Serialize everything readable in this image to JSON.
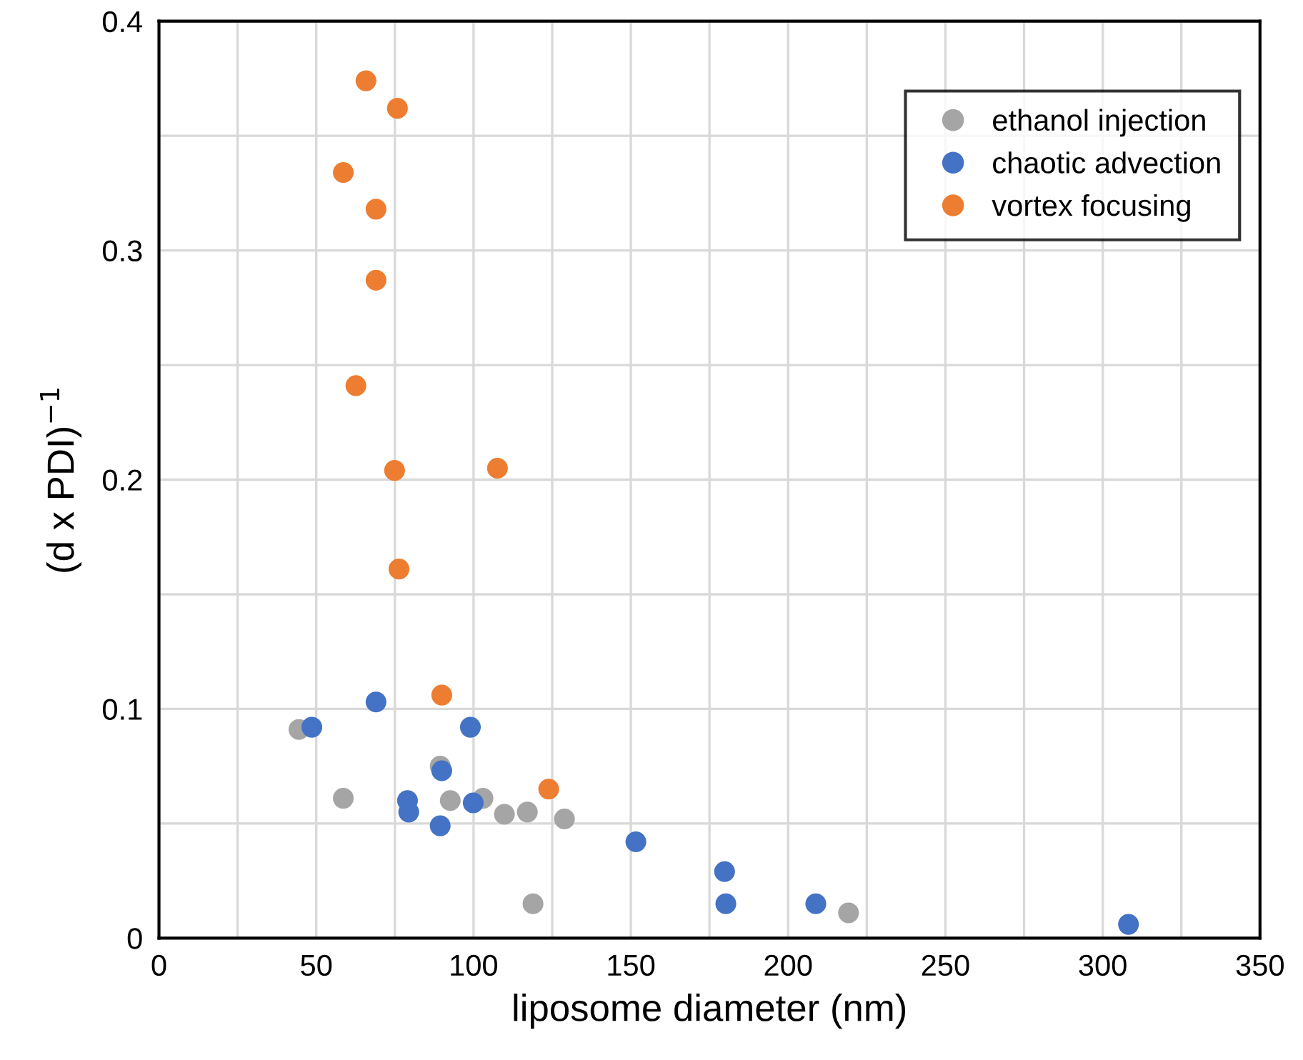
{
  "chart_data": {
    "type": "scatter",
    "xlabel": "liposome diameter (nm)",
    "ylabel": "(d x PDI)$^{−1}$",
    "xlim": [
      0,
      350
    ],
    "ylim": [
      0,
      0.4
    ],
    "xticks": [
      0,
      {
        "value": 25,
        "label": null
      },
      50,
      {
        "value": 75,
        "label": null
      },
      100,
      {
        "value": 125,
        "label": null
      },
      150,
      {
        "value": 175,
        "label": null
      },
      200,
      {
        "value": 225,
        "label": null
      },
      250,
      {
        "value": 275,
        "label": null
      },
      300,
      {
        "value": 325,
        "label": null
      },
      350
    ],
    "yticks": [
      0,
      {
        "value": 0.05,
        "label": null
      },
      0.1,
      {
        "value": 0.15,
        "label": null
      },
      0.2,
      {
        "value": 0.25,
        "label": null
      },
      0.3,
      {
        "value": 0.35,
        "label": null
      },
      0.4
    ],
    "grid": true,
    "legend": "top right",
    "marker": "circle",
    "series": [
      {
        "name": "ethanol injection",
        "color": "#a5a5a5",
        "x": [
          44.5,
          58.6,
          89.4,
          92.6,
          103,
          109.8,
          117.1,
          128.9,
          118.9,
          219.2
        ],
        "values": [
          0.091,
          0.061,
          0.075,
          0.06,
          0.061,
          0.054,
          0.055,
          0.052,
          0.015,
          0.011
        ]
      },
      {
        "name": "chaotic advection",
        "color": "#4472c4",
        "x": [
          48.6,
          69,
          99,
          89.9,
          79,
          79.4,
          89.4,
          99.9,
          151.6,
          179.8,
          180.2,
          208.8,
          308.2
        ],
        "values": [
          0.092,
          0.103,
          0.092,
          0.073,
          0.06,
          0.055,
          0.049,
          0.059,
          0.042,
          0.029,
          0.015,
          0.015,
          0.006
        ]
      },
      {
        "name": "vortex focusing",
        "color": "#ed7d31",
        "x": [
          65.8,
          75.8,
          58.6,
          69,
          69,
          62.6,
          74.9,
          107.6,
          76.3,
          89.9,
          123.9
        ],
        "values": [
          0.374,
          0.362,
          0.334,
          0.318,
          0.287,
          0.241,
          0.204,
          0.205,
          0.161,
          0.106,
          0.065
        ]
      }
    ]
  }
}
